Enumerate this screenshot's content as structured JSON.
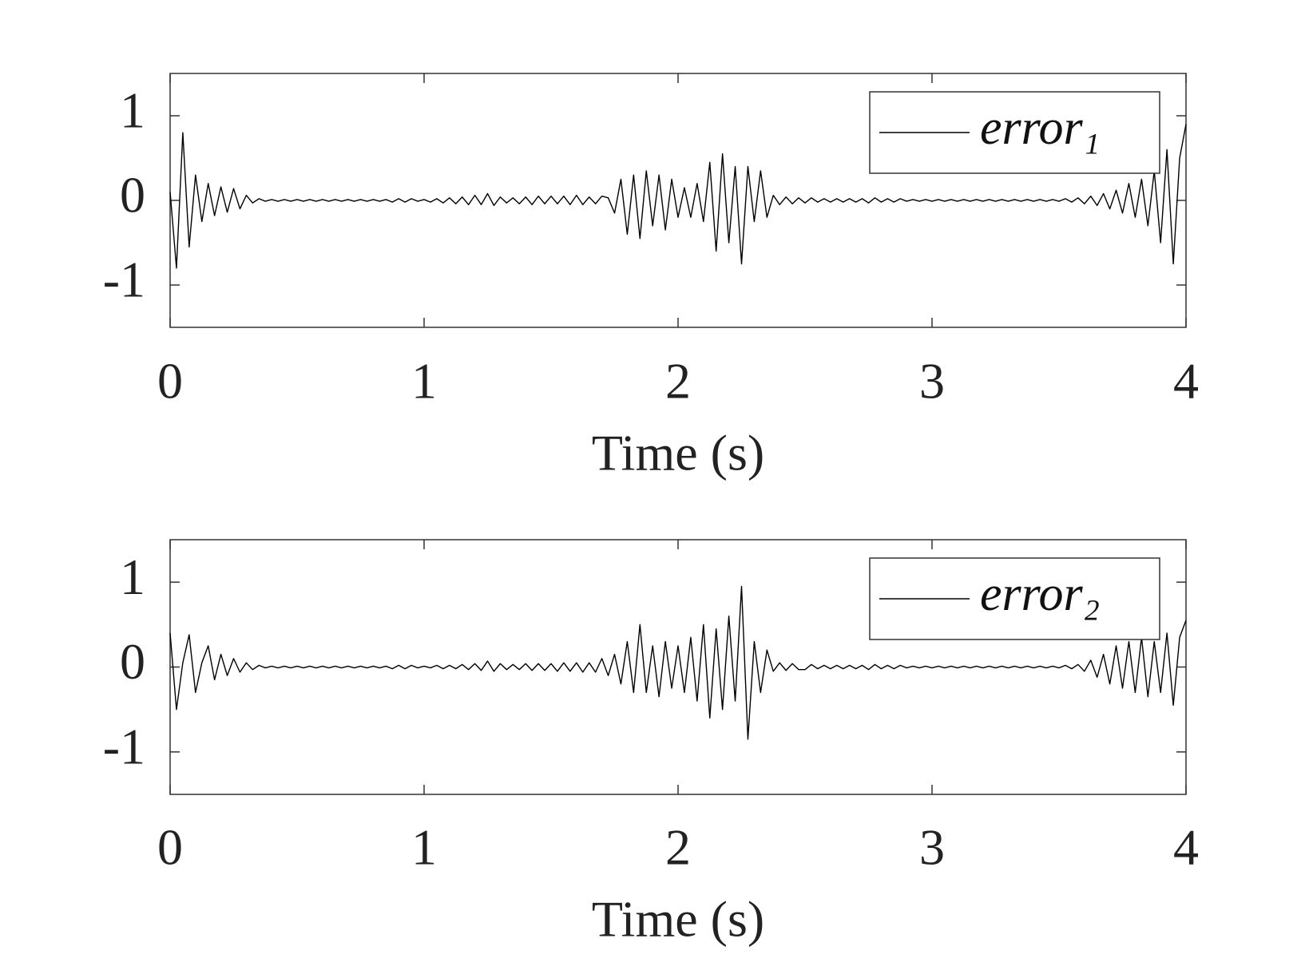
{
  "chart_data": [
    {
      "type": "line",
      "xlabel": "Time (s)",
      "legend": "northeast",
      "xlim": [
        0,
        4
      ],
      "ylim": [
        -1.5,
        1.5
      ],
      "xticks": [
        0,
        1,
        2,
        3,
        4
      ],
      "yticks": [
        -1,
        0,
        1
      ],
      "x": [
        0,
        0.025,
        0.05,
        0.075,
        0.1,
        0.125,
        0.15,
        0.175,
        0.2,
        0.225,
        0.25,
        0.275,
        0.3,
        0.325,
        0.35,
        0.375,
        0.4,
        0.425,
        0.45,
        0.475,
        0.5,
        0.525,
        0.55,
        0.575,
        0.6,
        0.625,
        0.65,
        0.675,
        0.7,
        0.725,
        0.75,
        0.775,
        0.8,
        0.825,
        0.85,
        0.875,
        0.9,
        0.925,
        0.95,
        0.975,
        1,
        1.025,
        1.05,
        1.075,
        1.1,
        1.125,
        1.15,
        1.175,
        1.2,
        1.225,
        1.25,
        1.275,
        1.3,
        1.325,
        1.35,
        1.375,
        1.4,
        1.425,
        1.45,
        1.475,
        1.5,
        1.525,
        1.55,
        1.575,
        1.6,
        1.625,
        1.65,
        1.675,
        1.7,
        1.725,
        1.75,
        1.775,
        1.8,
        1.825,
        1.85,
        1.875,
        1.9,
        1.925,
        1.95,
        1.975,
        2,
        2.025,
        2.05,
        2.075,
        2.1,
        2.125,
        2.15,
        2.175,
        2.2,
        2.225,
        2.25,
        2.275,
        2.3,
        2.325,
        2.35,
        2.375,
        2.4,
        2.425,
        2.45,
        2.475,
        2.5,
        2.525,
        2.55,
        2.575,
        2.6,
        2.625,
        2.65,
        2.675,
        2.7,
        2.725,
        2.75,
        2.775,
        2.8,
        2.825,
        2.85,
        2.875,
        2.9,
        2.925,
        2.95,
        2.975,
        3,
        3.025,
        3.05,
        3.075,
        3.1,
        3.125,
        3.15,
        3.175,
        3.2,
        3.225,
        3.25,
        3.275,
        3.3,
        3.325,
        3.35,
        3.375,
        3.4,
        3.425,
        3.45,
        3.475,
        3.5,
        3.525,
        3.55,
        3.575,
        3.6,
        3.625,
        3.65,
        3.675,
        3.7,
        3.725,
        3.75,
        3.775,
        3.8,
        3.825,
        3.85,
        3.875,
        3.9,
        3.925,
        3.95,
        3.975,
        4
      ],
      "series": [
        {
          "name": "error₁",
          "color": "#000000",
          "values": [
            0.1,
            -0.8,
            0.8,
            -0.55,
            0.3,
            -0.25,
            0.2,
            -0.18,
            0.16,
            -0.14,
            0.14,
            -0.1,
            0.06,
            -0.03,
            0.02,
            -0.01,
            0.01,
            -0.01,
            0.01,
            -0.01,
            0.01,
            -0.01,
            0.01,
            -0.01,
            0.01,
            -0.01,
            0.01,
            -0.01,
            0.01,
            -0.01,
            0.01,
            -0.01,
            0.01,
            -0.01,
            0.01,
            -0.02,
            0.02,
            -0.02,
            0.02,
            -0.01,
            0.01,
            -0.02,
            0.02,
            -0.03,
            0.03,
            -0.04,
            0.04,
            -0.05,
            0.06,
            -0.05,
            0.08,
            -0.06,
            0.04,
            -0.03,
            0.03,
            -0.04,
            0.04,
            -0.05,
            0.05,
            -0.04,
            0.05,
            -0.04,
            0.05,
            -0.05,
            0.06,
            -0.05,
            0.04,
            -0.04,
            0.05,
            0.03,
            -0.15,
            0.25,
            -0.4,
            0.3,
            -0.45,
            0.35,
            -0.3,
            0.3,
            -0.35,
            0.25,
            -0.2,
            0.15,
            -0.2,
            0.2,
            -0.25,
            0.45,
            -0.6,
            0.55,
            -0.5,
            0.4,
            -0.75,
            0.4,
            -0.25,
            0.35,
            -0.2,
            0.06,
            -0.05,
            0.04,
            -0.04,
            0.03,
            -0.03,
            0.03,
            -0.02,
            0.02,
            -0.02,
            0.02,
            -0.02,
            0.02,
            -0.02,
            0.02,
            -0.03,
            0.03,
            -0.02,
            0.02,
            -0.02,
            0.02,
            -0.01,
            0.01,
            -0.01,
            0.01,
            -0.01,
            0.01,
            -0.01,
            0.01,
            -0.01,
            0.01,
            -0.01,
            0.01,
            -0.01,
            0.01,
            -0.01,
            0.01,
            -0.01,
            0.01,
            -0.01,
            0.01,
            -0.01,
            0.01,
            -0.01,
            0.01,
            -0.01,
            0.02,
            -0.02,
            0.03,
            -0.04,
            0.05,
            -0.06,
            0.08,
            -0.1,
            0.12,
            -0.15,
            0.2,
            -0.2,
            0.25,
            -0.3,
            0.35,
            -0.5,
            0.6,
            -0.75,
            0.5,
            0.9
          ]
        }
      ]
    },
    {
      "type": "line",
      "xlabel": "Time (s)",
      "legend": "northeast",
      "xlim": [
        0,
        4
      ],
      "ylim": [
        -1.5,
        1.5
      ],
      "xticks": [
        0,
        1,
        2,
        3,
        4
      ],
      "yticks": [
        -1,
        0,
        1
      ],
      "x": [
        0,
        0.025,
        0.05,
        0.075,
        0.1,
        0.125,
        0.15,
        0.175,
        0.2,
        0.225,
        0.25,
        0.275,
        0.3,
        0.325,
        0.35,
        0.375,
        0.4,
        0.425,
        0.45,
        0.475,
        0.5,
        0.525,
        0.55,
        0.575,
        0.6,
        0.625,
        0.65,
        0.675,
        0.7,
        0.725,
        0.75,
        0.775,
        0.8,
        0.825,
        0.85,
        0.875,
        0.9,
        0.925,
        0.95,
        0.975,
        1,
        1.025,
        1.05,
        1.075,
        1.1,
        1.125,
        1.15,
        1.175,
        1.2,
        1.225,
        1.25,
        1.275,
        1.3,
        1.325,
        1.35,
        1.375,
        1.4,
        1.425,
        1.45,
        1.475,
        1.5,
        1.525,
        1.55,
        1.575,
        1.6,
        1.625,
        1.65,
        1.675,
        1.7,
        1.725,
        1.75,
        1.775,
        1.8,
        1.825,
        1.85,
        1.875,
        1.9,
        1.925,
        1.95,
        1.975,
        2,
        2.025,
        2.05,
        2.075,
        2.1,
        2.125,
        2.15,
        2.175,
        2.2,
        2.225,
        2.25,
        2.275,
        2.3,
        2.325,
        2.35,
        2.375,
        2.4,
        2.425,
        2.45,
        2.475,
        2.5,
        2.525,
        2.55,
        2.575,
        2.6,
        2.625,
        2.65,
        2.675,
        2.7,
        2.725,
        2.75,
        2.775,
        2.8,
        2.825,
        2.85,
        2.875,
        2.9,
        2.925,
        2.95,
        2.975,
        3,
        3.025,
        3.05,
        3.075,
        3.1,
        3.125,
        3.15,
        3.175,
        3.2,
        3.225,
        3.25,
        3.275,
        3.3,
        3.325,
        3.35,
        3.375,
        3.4,
        3.425,
        3.45,
        3.475,
        3.5,
        3.525,
        3.55,
        3.575,
        3.6,
        3.625,
        3.65,
        3.675,
        3.7,
        3.725,
        3.75,
        3.775,
        3.8,
        3.825,
        3.85,
        3.875,
        3.9,
        3.925,
        3.95,
        3.975,
        4
      ],
      "series": [
        {
          "name": "error₂",
          "color": "#000000",
          "values": [
            0.4,
            -0.5,
            0.05,
            0.38,
            -0.3,
            0.05,
            0.25,
            -0.15,
            0.15,
            -0.1,
            0.1,
            -0.06,
            0.05,
            -0.03,
            0.02,
            -0.01,
            0.01,
            -0.01,
            0.01,
            -0.01,
            0.01,
            -0.01,
            0.01,
            -0.01,
            0.01,
            -0.01,
            0.01,
            -0.01,
            0.01,
            -0.01,
            0.01,
            -0.01,
            0.01,
            -0.01,
            0.01,
            -0.02,
            0.02,
            -0.02,
            0.02,
            -0.01,
            0.01,
            -0.01,
            0.02,
            -0.02,
            0.02,
            -0.02,
            0.03,
            -0.03,
            0.04,
            -0.04,
            0.07,
            -0.05,
            0.04,
            -0.03,
            0.03,
            -0.03,
            0.04,
            -0.04,
            0.04,
            -0.04,
            0.04,
            -0.05,
            0.05,
            -0.05,
            0.05,
            -0.06,
            0.05,
            -0.06,
            0.1,
            -0.1,
            0.15,
            -0.2,
            0.3,
            -0.3,
            0.5,
            -0.3,
            0.25,
            -0.35,
            0.3,
            -0.25,
            0.25,
            -0.3,
            0.35,
            -0.4,
            0.5,
            -0.6,
            0.45,
            -0.5,
            0.6,
            -0.4,
            0.95,
            -0.85,
            0.3,
            -0.3,
            0.2,
            -0.05,
            0.05,
            -0.04,
            0.04,
            -0.03,
            -0.03,
            0.03,
            -0.02,
            0.02,
            -0.02,
            0.02,
            -0.02,
            0.02,
            -0.02,
            0.02,
            -0.03,
            0.03,
            -0.02,
            0.02,
            -0.02,
            0.02,
            -0.01,
            0.01,
            -0.01,
            0.01,
            -0.01,
            0.01,
            -0.01,
            0.01,
            -0.01,
            0.01,
            -0.01,
            0.01,
            -0.01,
            0.01,
            -0.01,
            0.01,
            -0.01,
            0.01,
            -0.01,
            0.01,
            -0.01,
            0.01,
            -0.01,
            0.01,
            -0.01,
            0.02,
            -0.02,
            0.03,
            -0.05,
            0.08,
            -0.12,
            0.15,
            -0.2,
            0.25,
            -0.25,
            0.3,
            -0.3,
            0.35,
            -0.35,
            0.3,
            -0.3,
            0.4,
            -0.45,
            0.35,
            0.55
          ]
        }
      ]
    }
  ]
}
